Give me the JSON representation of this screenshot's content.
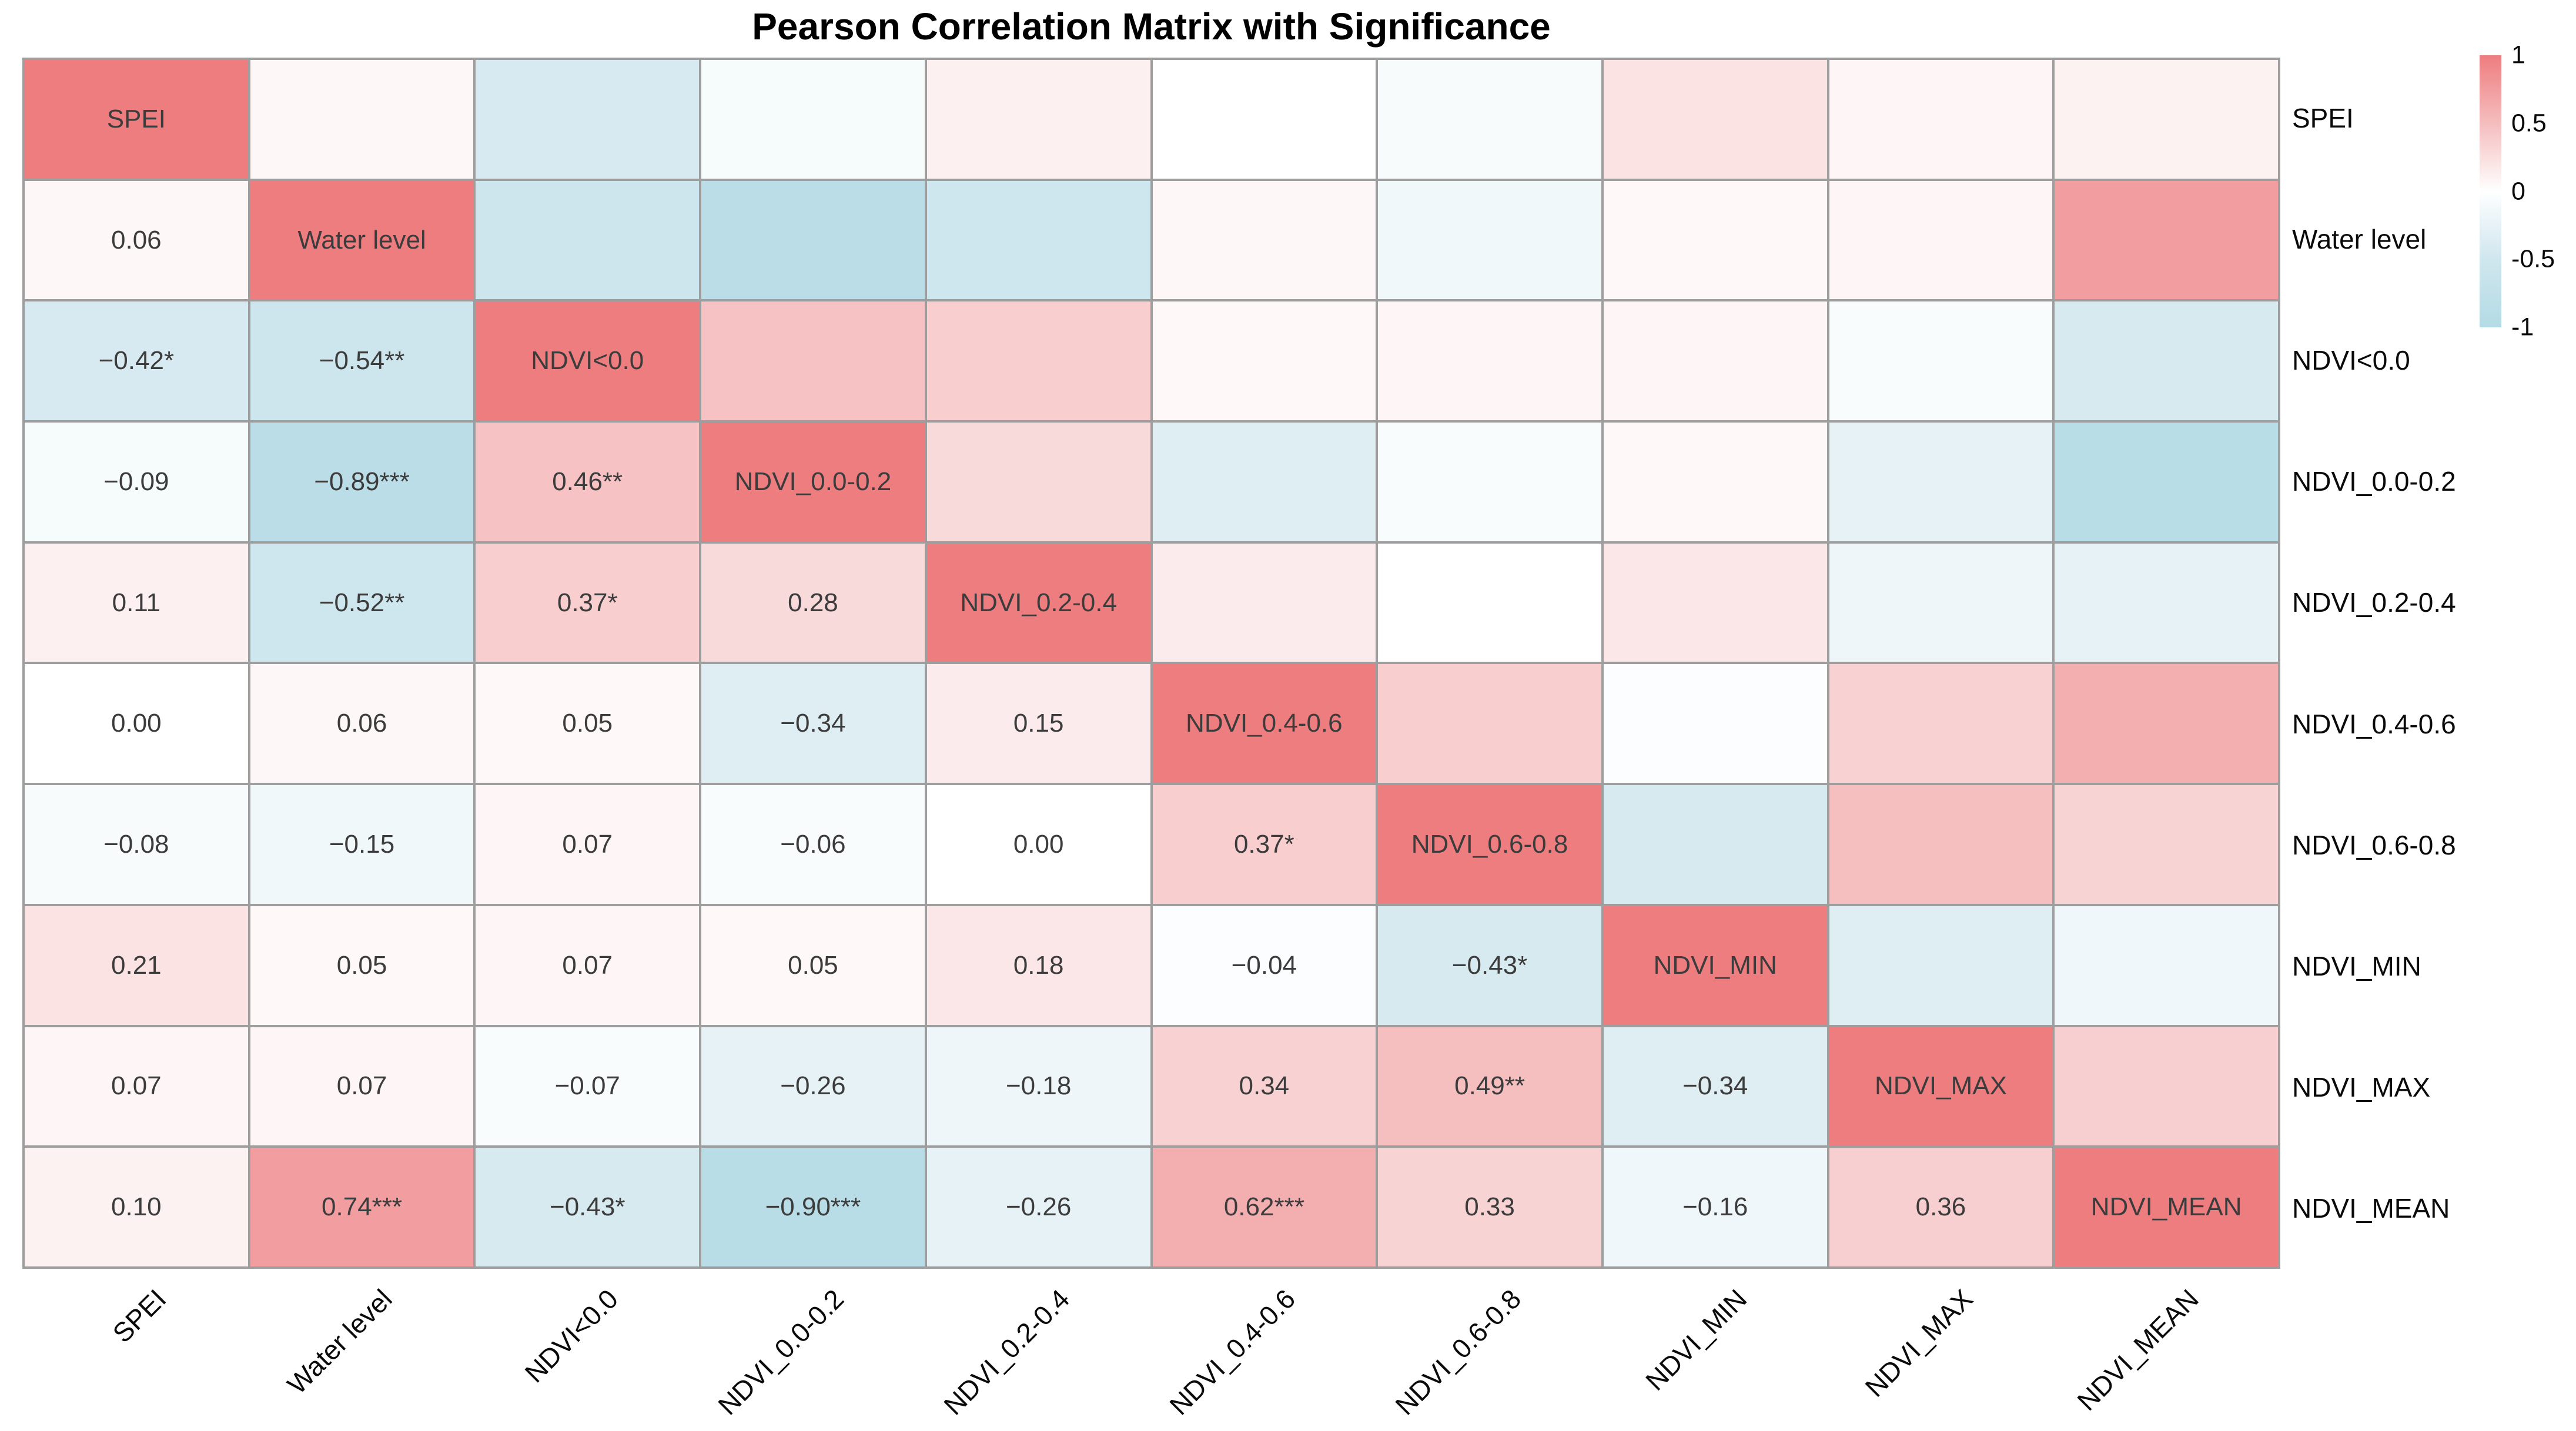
{
  "title": "Pearson Correlation Matrix with Significance",
  "colors": {
    "background": "#ffffff",
    "grid_line": "#9e9e9e",
    "cell_text": "#3c3c3c",
    "label_text": "#0a0a0a",
    "colormap_anchors": [
      {
        "value": -1,
        "color": "#b4dbe5"
      },
      {
        "value": -0.5,
        "color": "#cfe6ee"
      },
      {
        "value": 0,
        "color": "#ffffff"
      },
      {
        "value": 0.5,
        "color": "#f5bdbe"
      },
      {
        "value": 1,
        "color": "#ee7d7f"
      }
    ]
  },
  "chart_data": {
    "type": "heatmap",
    "title": "Pearson Correlation Matrix with Significance",
    "labels": [
      "SPEI",
      "Water level",
      "NDVI<0.0",
      "NDVI_0.0-0.2",
      "NDVI_0.2-0.4",
      "NDVI_0.4-0.6",
      "NDVI_0.6-0.8",
      "NDVI_MIN",
      "NDVI_MAX",
      "NDVI_MEAN"
    ],
    "matrix": [
      [
        1.0,
        0.06,
        -0.42,
        -0.09,
        0.11,
        0.0,
        -0.08,
        0.21,
        0.07,
        0.1
      ],
      [
        0.06,
        1.0,
        -0.54,
        -0.89,
        -0.52,
        0.06,
        -0.15,
        0.05,
        0.07,
        0.74
      ],
      [
        -0.42,
        -0.54,
        1.0,
        0.46,
        0.37,
        0.05,
        0.07,
        0.07,
        -0.07,
        -0.43
      ],
      [
        -0.09,
        -0.89,
        0.46,
        1.0,
        0.28,
        -0.34,
        -0.06,
        0.05,
        -0.26,
        -0.9
      ],
      [
        0.11,
        -0.52,
        0.37,
        0.28,
        1.0,
        0.15,
        0.0,
        0.18,
        -0.18,
        -0.26
      ],
      [
        0.0,
        0.06,
        0.05,
        -0.34,
        0.15,
        1.0,
        0.37,
        -0.04,
        0.34,
        0.62
      ],
      [
        -0.08,
        -0.15,
        0.07,
        -0.06,
        0.0,
        0.37,
        1.0,
        -0.43,
        0.49,
        0.33
      ],
      [
        0.21,
        0.05,
        0.07,
        0.05,
        0.18,
        -0.04,
        -0.43,
        1.0,
        -0.34,
        -0.16
      ],
      [
        0.07,
        0.07,
        -0.07,
        -0.26,
        -0.18,
        0.34,
        0.49,
        -0.34,
        1.0,
        0.36
      ],
      [
        0.1,
        0.74,
        -0.43,
        -0.9,
        -0.26,
        0.62,
        0.33,
        -0.16,
        0.36,
        1.0
      ]
    ],
    "lower_triangle_texts": [
      [],
      [
        "0.06"
      ],
      [
        "−0.42*",
        "−0.54**"
      ],
      [
        "−0.09",
        "−0.89***",
        "0.46**"
      ],
      [
        "0.11",
        "−0.52**",
        "0.37*",
        "0.28"
      ],
      [
        "0.00",
        "0.06",
        "0.05",
        "−0.34",
        "0.15"
      ],
      [
        "−0.08",
        "−0.15",
        "0.07",
        "−0.06",
        "0.00",
        "0.37*"
      ],
      [
        "0.21",
        "0.05",
        "0.07",
        "0.05",
        "0.18",
        "−0.04",
        "−0.43*"
      ],
      [
        "0.07",
        "0.07",
        "−0.07",
        "−0.26",
        "−0.18",
        "0.34",
        "0.49**",
        "−0.34"
      ],
      [
        "0.10",
        "0.74***",
        "−0.43*",
        "−0.90***",
        "−0.26",
        "0.62***",
        "0.33",
        "−0.16",
        "0.36"
      ]
    ],
    "colorbar": {
      "min": -1,
      "max": 1,
      "tick_values": [
        1,
        0.5,
        0,
        -0.5,
        -1
      ],
      "tick_labels": [
        "1",
        "0.5",
        "0",
        "-0.5",
        "-1"
      ]
    },
    "layout_hints": {
      "diagonal_shows_variable_names": true,
      "upper_triangle": "color only, no text",
      "x_tick_rotation_deg": 45,
      "colorbar_position": "top-right"
    }
  }
}
